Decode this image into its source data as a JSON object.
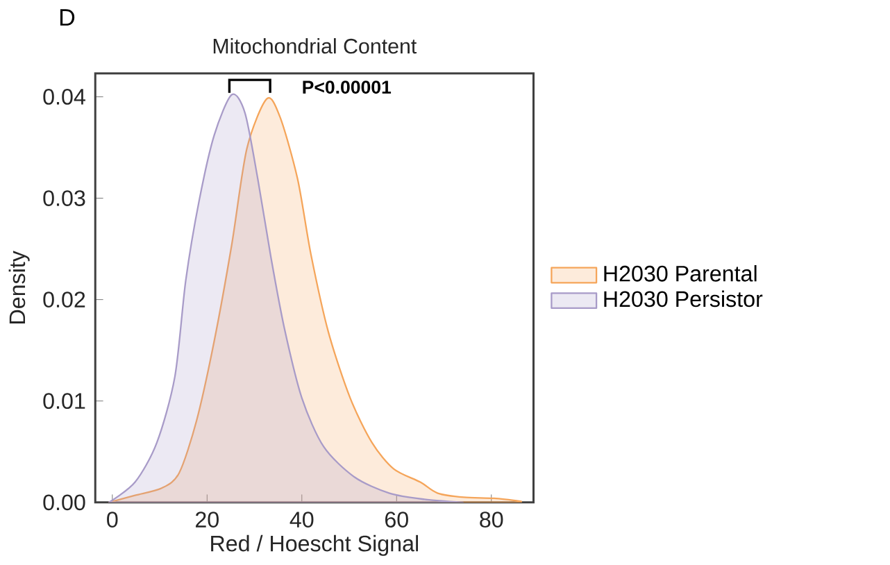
{
  "chart_data": {
    "type": "area",
    "title": "Mitochondrial Content",
    "xlabel": "Red / Hoescht Signal",
    "ylabel": "Density",
    "xlim": [
      -3.6,
      88.9
    ],
    "ylim": [
      0,
      0.0423
    ],
    "xticks": [
      0,
      20,
      40,
      60,
      80
    ],
    "yticks": [
      {
        "value": 0,
        "label": "0.00"
      },
      {
        "value": 0.01,
        "label": "0.01"
      },
      {
        "value": 0.02,
        "label": "0.02"
      },
      {
        "value": 0.03,
        "label": "0.03"
      },
      {
        "value": 0.04,
        "label": "0.04"
      }
    ],
    "legend": "right",
    "grid": false,
    "annotations": [
      "D",
      "P<0.00001"
    ],
    "series": [
      {
        "name": "H2030 Parental",
        "color": "#f5a55a",
        "x": [
          -0.7,
          4.8,
          10.4,
          14.1,
          17.8,
          21.5,
          25.2,
          28.4,
          32.6,
          35.4,
          39.1,
          41.9,
          45.6,
          50.2,
          54.8,
          59.4,
          65,
          68.7,
          74.2,
          80.6,
          86.3
        ],
        "values": [
          0,
          0.0007,
          0.0014,
          0.0029,
          0.0081,
          0.0159,
          0.0254,
          0.0349,
          0.0398,
          0.038,
          0.0319,
          0.0245,
          0.0168,
          0.0103,
          0.0059,
          0.0033,
          0.002,
          0.0009,
          0.0005,
          0.0004,
          0.0001
        ]
      },
      {
        "name": "H2030 Persistor",
        "color": "#a89bc8",
        "x": [
          -0.7,
          4.8,
          9.4,
          13.2,
          15.5,
          18.3,
          21.5,
          25.2,
          28,
          30.7,
          33.5,
          36.3,
          40,
          44.6,
          51.1,
          58.5,
          65.9,
          74
        ],
        "values": [
          0,
          0.002,
          0.0059,
          0.0124,
          0.0219,
          0.0297,
          0.0362,
          0.0402,
          0.0384,
          0.0319,
          0.0241,
          0.0172,
          0.0103,
          0.0055,
          0.0025,
          0.0009,
          0.0003,
          0
        ]
      }
    ]
  }
}
